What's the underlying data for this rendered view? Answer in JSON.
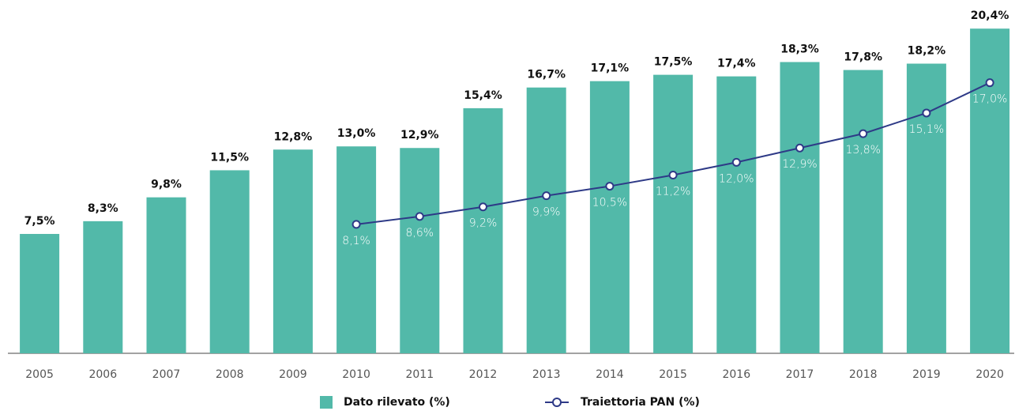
{
  "chart_data": {
    "type": "bar+line",
    "categories": [
      "2005",
      "2006",
      "2007",
      "2008",
      "2009",
      "2010",
      "2011",
      "2012",
      "2013",
      "2014",
      "2015",
      "2016",
      "2017",
      "2018",
      "2019",
      "2020"
    ],
    "series": [
      {
        "name": "Dato rilevato (%)",
        "type": "bar",
        "color": "#52b9a9",
        "values": [
          7.5,
          8.3,
          9.8,
          11.5,
          12.8,
          13.0,
          12.9,
          15.4,
          16.7,
          17.1,
          17.5,
          17.4,
          18.3,
          17.8,
          18.2,
          20.4
        ],
        "value_labels": [
          "7,5%",
          "8,3%",
          "9,8%",
          "11,5%",
          "12,8%",
          "13,0%",
          "12,9%",
          "15,4%",
          "16,7%",
          "17,1%",
          "17,5%",
          "17,4%",
          "18,3%",
          "17,8%",
          "18,2%",
          "20,4%"
        ]
      },
      {
        "name": "Traiettoria PAN (%)",
        "type": "line",
        "color": "#2e3a87",
        "values": [
          null,
          null,
          null,
          null,
          null,
          8.1,
          8.6,
          9.2,
          9.9,
          10.5,
          11.2,
          12.0,
          12.9,
          13.8,
          15.1,
          17.0
        ],
        "value_labels": [
          null,
          null,
          null,
          null,
          null,
          "8,1%",
          "8,6%",
          "9,2%",
          "9,9%",
          "10,5%",
          "11,2%",
          "12,0%",
          "12,9%",
          "13,8%",
          "15,1%",
          "17,0%"
        ]
      }
    ],
    "ylim": [
      0,
      22
    ]
  }
}
